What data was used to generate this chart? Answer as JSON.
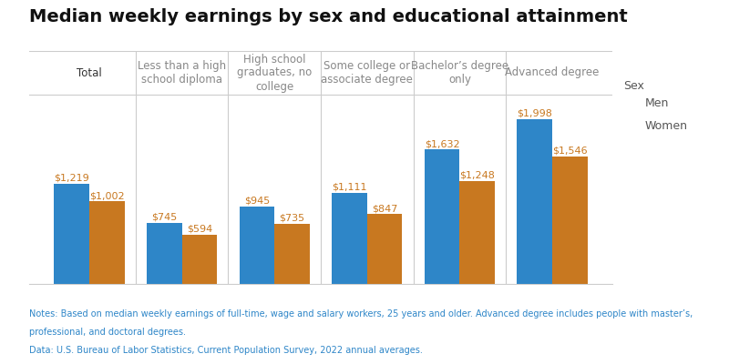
{
  "title": "Median weekly earnings by sex and educational attainment",
  "categories": [
    "Total",
    "Less than a high\nschool diploma",
    "High school\ngraduates, no\ncollege",
    "Some college or\nassociate degree",
    "Bachelor’s degree\nonly",
    "Advanced degree"
  ],
  "category_colors": [
    "#333333",
    "#888888",
    "#888888",
    "#888888",
    "#888888",
    "#888888"
  ],
  "men_values": [
    1219,
    745,
    945,
    1111,
    1632,
    1998
  ],
  "women_values": [
    1002,
    594,
    735,
    847,
    1248,
    1546
  ],
  "men_labels": [
    "$1,219",
    "$745",
    "$945",
    "$1,111",
    "$1,632",
    "$1,998"
  ],
  "women_labels": [
    "$1,002",
    "$594",
    "$735",
    "$847",
    "$1,248",
    "$1,546"
  ],
  "men_color": "#2E86C8",
  "women_color": "#C87820",
  "label_color": "#C87820",
  "background_color": "#ffffff",
  "title_fontsize": 14,
  "category_fontsize": 8.5,
  "value_fontsize": 8,
  "legend_title": "Sex",
  "legend_men": "Men",
  "legend_women": "Women",
  "notes_line1": "Notes: Based on median weekly earnings of full-time, wage and salary workers, 25 years and older. Advanced degree includes people with master’s,",
  "notes_line2": "professional, and doctoral degrees.",
  "data_line": "Data: U.S. Bureau of Labor Statistics, Current Population Survey, 2022 annual averages.",
  "notes_color": "#2E86C8",
  "ylim": [
    0,
    2300
  ],
  "bar_width": 0.38,
  "grid_color": "#cccccc",
  "grid_lw": 0.8
}
